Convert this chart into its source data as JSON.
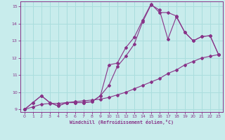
{
  "xlabel": "Windchill (Refroidissement éolien,°C)",
  "bg_color": "#c8ecec",
  "line_color": "#883388",
  "grid_color": "#aadddd",
  "xlim": [
    -0.5,
    23.5
  ],
  "ylim": [
    8.85,
    15.3
  ],
  "xticks": [
    0,
    1,
    2,
    3,
    4,
    5,
    6,
    7,
    8,
    9,
    10,
    11,
    12,
    13,
    14,
    15,
    16,
    17,
    18,
    19,
    20,
    21,
    22,
    23
  ],
  "yticks": [
    9,
    10,
    11,
    12,
    13,
    14,
    15
  ],
  "line1_x": [
    0,
    1,
    2,
    3,
    4,
    5,
    6,
    7,
    8,
    9,
    10,
    11,
    12,
    13,
    14,
    15,
    16,
    17,
    18,
    19,
    20,
    21,
    22,
    23
  ],
  "line1_y": [
    9.0,
    9.15,
    9.3,
    9.35,
    9.35,
    9.4,
    9.45,
    9.5,
    9.55,
    9.6,
    9.7,
    9.85,
    10.0,
    10.2,
    10.4,
    10.6,
    10.8,
    11.1,
    11.3,
    11.6,
    11.8,
    12.0,
    12.1,
    12.2
  ],
  "line2_x": [
    0,
    1,
    2,
    3,
    4,
    5,
    6,
    7,
    8,
    9,
    10,
    11,
    12,
    13,
    14,
    15,
    16,
    17,
    18,
    19,
    20,
    21,
    22,
    23
  ],
  "line2_y": [
    9.0,
    9.4,
    9.8,
    9.4,
    9.2,
    9.4,
    9.4,
    9.4,
    9.45,
    9.8,
    10.4,
    11.5,
    12.1,
    12.8,
    14.1,
    15.1,
    14.8,
    13.1,
    14.4,
    13.5,
    13.0,
    13.25,
    13.3,
    12.2
  ],
  "line3_x": [
    0,
    1,
    2,
    3,
    4,
    5,
    6,
    7,
    8,
    9,
    10,
    11,
    12,
    13,
    14,
    15,
    16,
    17,
    18,
    19,
    20,
    21,
    22,
    23
  ],
  "line3_y": [
    9.0,
    9.4,
    9.8,
    9.4,
    9.2,
    9.4,
    9.4,
    9.4,
    9.45,
    9.8,
    11.6,
    11.7,
    12.6,
    13.2,
    14.2,
    15.15,
    14.65,
    14.65,
    14.45,
    13.5,
    13.0,
    13.25,
    13.3,
    12.2
  ]
}
